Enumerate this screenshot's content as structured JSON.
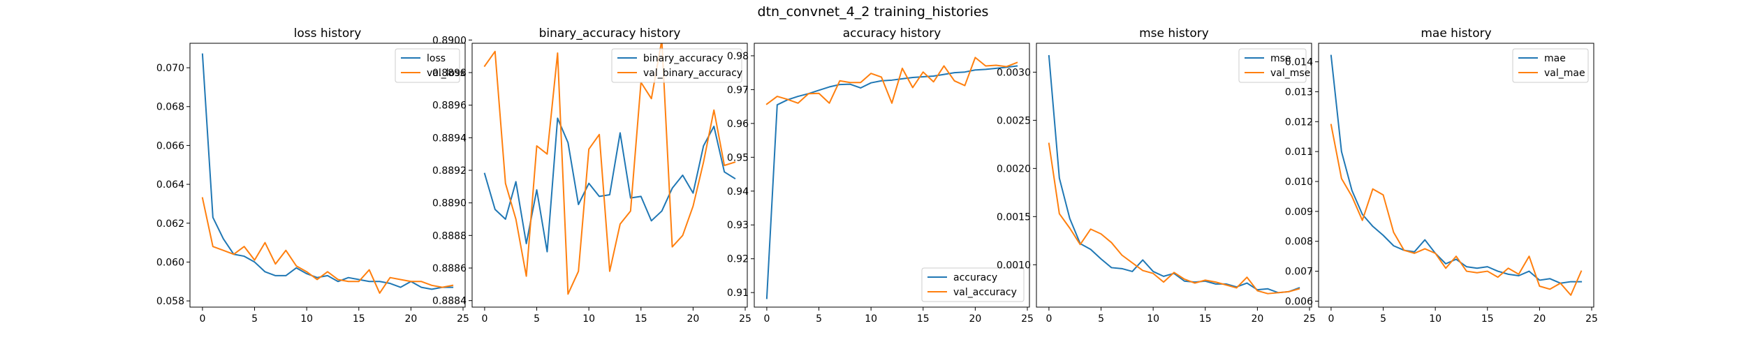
{
  "suptitle": "dtn_convnet_4_2 training_histories",
  "colors": {
    "train": "#1f77b4",
    "val": "#ff7f0e"
  },
  "chart_data": [
    {
      "type": "line",
      "title": "loss history",
      "legend_position": "upper-right",
      "xlim": [
        -1.2,
        25.2
      ],
      "ylim": [
        0.05768,
        0.07126
      ],
      "xticks": [
        0,
        5,
        10,
        15,
        20,
        25
      ],
      "yticks": [
        0.058,
        0.06,
        0.062,
        0.064,
        0.066,
        0.068,
        0.07
      ],
      "ytick_labels": [
        "0.058",
        "0.060",
        "0.062",
        "0.064",
        "0.066",
        "0.068",
        "0.070"
      ],
      "x": [
        0,
        1,
        2,
        3,
        4,
        5,
        6,
        7,
        8,
        9,
        10,
        11,
        12,
        13,
        14,
        15,
        16,
        17,
        18,
        19,
        20,
        21,
        22,
        23,
        24
      ],
      "series": [
        {
          "name": "loss",
          "color_key": "train",
          "values": [
            0.0707,
            0.0623,
            0.0612,
            0.0604,
            0.0603,
            0.06,
            0.0595,
            0.0593,
            0.0593,
            0.0597,
            0.0594,
            0.0592,
            0.0593,
            0.059,
            0.0592,
            0.0591,
            0.059,
            0.059,
            0.0589,
            0.0587,
            0.059,
            0.0587,
            0.0586,
            0.0587,
            0.0587
          ]
        },
        {
          "name": "val_loss",
          "color_key": "val",
          "values": [
            0.0633,
            0.0608,
            0.0606,
            0.0604,
            0.0608,
            0.0601,
            0.061,
            0.0599,
            0.0606,
            0.0598,
            0.0595,
            0.0591,
            0.0595,
            0.0591,
            0.059,
            0.059,
            0.0596,
            0.0584,
            0.0592,
            0.0591,
            0.059,
            0.059,
            0.0588,
            0.0587,
            0.0588
          ]
        }
      ]
    },
    {
      "type": "line",
      "title": "binary_accuracy history",
      "legend_position": "upper-right",
      "xlim": [
        -1.2,
        25.2
      ],
      "ylim": [
        0.88836,
        0.88998
      ],
      "xticks": [
        0,
        5,
        10,
        15,
        20,
        25
      ],
      "yticks": [
        0.8884,
        0.8886,
        0.8888,
        0.889,
        0.8892,
        0.8894,
        0.8896,
        0.8898,
        0.89
      ],
      "ytick_labels": [
        "0.8884",
        "0.8886",
        "0.8888",
        "0.8890",
        "0.8892",
        "0.8894",
        "0.8896",
        "0.8898",
        "0.8900"
      ],
      "x": [
        0,
        1,
        2,
        3,
        4,
        5,
        6,
        7,
        8,
        9,
        10,
        11,
        12,
        13,
        14,
        15,
        16,
        17,
        18,
        19,
        20,
        21,
        22,
        23,
        24
      ],
      "series": [
        {
          "name": "binary_accuracy",
          "color_key": "train",
          "values": [
            0.88918,
            0.88896,
            0.8889,
            0.88913,
            0.88875,
            0.88908,
            0.8887,
            0.88952,
            0.88937,
            0.88899,
            0.88912,
            0.88904,
            0.88905,
            0.88943,
            0.88903,
            0.88904,
            0.88889,
            0.88895,
            0.88909,
            0.88917,
            0.88906,
            0.88935,
            0.88947,
            0.88919,
            0.88915
          ]
        },
        {
          "name": "val_binary_accuracy",
          "color_key": "val",
          "values": [
            0.88984,
            0.88993,
            0.88912,
            0.8889,
            0.88855,
            0.88935,
            0.8893,
            0.88992,
            0.88844,
            0.88858,
            0.88933,
            0.88942,
            0.88858,
            0.88887,
            0.88895,
            0.88974,
            0.88964,
            0.89,
            0.88873,
            0.8888,
            0.88898,
            0.88925,
            0.88957,
            0.88923,
            0.88925
          ]
        }
      ]
    },
    {
      "type": "line",
      "title": "accuracy history",
      "legend_position": "lower-right",
      "xlim": [
        -1.2,
        25.2
      ],
      "ylim": [
        0.9057,
        0.9837
      ],
      "xticks": [
        0,
        5,
        10,
        15,
        20,
        25
      ],
      "yticks": [
        0.91,
        0.92,
        0.93,
        0.94,
        0.95,
        0.96,
        0.97,
        0.98
      ],
      "ytick_labels": [
        "0.91",
        "0.92",
        "0.93",
        "0.94",
        "0.95",
        "0.96",
        "0.97",
        "0.98"
      ],
      "x": [
        0,
        1,
        2,
        3,
        4,
        5,
        6,
        7,
        8,
        9,
        10,
        11,
        12,
        13,
        14,
        15,
        16,
        17,
        18,
        19,
        20,
        21,
        22,
        23,
        24
      ],
      "series": [
        {
          "name": "accuracy",
          "color_key": "train",
          "values": [
            0.9083,
            0.9655,
            0.967,
            0.968,
            0.9688,
            0.9698,
            0.9708,
            0.9715,
            0.9716,
            0.9705,
            0.972,
            0.9726,
            0.9728,
            0.9732,
            0.9736,
            0.9738,
            0.974,
            0.9745,
            0.975,
            0.9752,
            0.9758,
            0.976,
            0.9763,
            0.9766,
            0.977
          ]
        },
        {
          "name": "val_accuracy",
          "color_key": "val",
          "values": [
            0.9657,
            0.968,
            0.9671,
            0.966,
            0.9688,
            0.9689,
            0.966,
            0.9726,
            0.9721,
            0.9721,
            0.9748,
            0.9737,
            0.966,
            0.9763,
            0.9706,
            0.9752,
            0.9723,
            0.977,
            0.9726,
            0.9712,
            0.9795,
            0.977,
            0.9772,
            0.9768,
            0.978
          ]
        }
      ]
    },
    {
      "type": "line",
      "title": "mse history",
      "legend_position": "upper-right",
      "xlim": [
        -1.2,
        25.2
      ],
      "ylim": [
        0.00056,
        0.0033
      ],
      "xticks": [
        0,
        5,
        10,
        15,
        20,
        25
      ],
      "yticks": [
        0.001,
        0.0015,
        0.002,
        0.0025,
        0.003
      ],
      "ytick_labels": [
        "0.0010",
        "0.0015",
        "0.0020",
        "0.0025",
        "0.0030"
      ],
      "x": [
        0,
        1,
        2,
        3,
        4,
        5,
        6,
        7,
        8,
        9,
        10,
        11,
        12,
        13,
        14,
        15,
        16,
        17,
        18,
        19,
        20,
        21,
        22,
        23,
        24
      ],
      "series": [
        {
          "name": "mse",
          "color_key": "train",
          "values": [
            0.00317,
            0.0019,
            0.00148,
            0.00122,
            0.00116,
            0.00106,
            0.00097,
            0.00096,
            0.00093,
            0.00105,
            0.00093,
            0.00088,
            0.00091,
            0.00083,
            0.00082,
            0.00083,
            0.0008,
            0.0008,
            0.00077,
            0.00081,
            0.00074,
            0.00075,
            0.00071,
            0.00072,
            0.00076
          ]
        },
        {
          "name": "val_mse",
          "color_key": "val",
          "values": [
            0.00226,
            0.00153,
            0.00138,
            0.00121,
            0.00137,
            0.00132,
            0.00123,
            0.0011,
            0.00102,
            0.00094,
            0.00091,
            0.00082,
            0.00092,
            0.00085,
            0.00081,
            0.00084,
            0.00082,
            0.00079,
            0.00076,
            0.00087,
            0.00073,
            0.0007,
            0.00071,
            0.00072,
            0.00075
          ]
        }
      ]
    },
    {
      "type": "line",
      "title": "mae history",
      "legend_position": "upper-right",
      "xlim": [
        -1.2,
        25.2
      ],
      "ylim": [
        0.0058,
        0.01462
      ],
      "xticks": [
        0,
        5,
        10,
        15,
        20,
        25
      ],
      "yticks": [
        0.006,
        0.007,
        0.008,
        0.009,
        0.01,
        0.011,
        0.012,
        0.013,
        0.014
      ],
      "ytick_labels": [
        "0.006",
        "0.007",
        "0.008",
        "0.009",
        "0.010",
        "0.011",
        "0.012",
        "0.013",
        "0.014"
      ],
      "x": [
        0,
        1,
        2,
        3,
        4,
        5,
        6,
        7,
        8,
        9,
        10,
        11,
        12,
        13,
        14,
        15,
        16,
        17,
        18,
        19,
        20,
        21,
        22,
        23,
        24
      ],
      "series": [
        {
          "name": "mae",
          "color_key": "train",
          "values": [
            0.01421,
            0.011,
            0.0097,
            0.0089,
            0.0085,
            0.0082,
            0.00785,
            0.0077,
            0.00765,
            0.00805,
            0.0076,
            0.00725,
            0.0074,
            0.00715,
            0.0071,
            0.00715,
            0.007,
            0.0069,
            0.00685,
            0.007,
            0.0067,
            0.00675,
            0.0066,
            0.00665,
            0.00665
          ]
        },
        {
          "name": "val_mae",
          "color_key": "val",
          "values": [
            0.0119,
            0.0101,
            0.0095,
            0.0087,
            0.00975,
            0.00955,
            0.0083,
            0.0077,
            0.0076,
            0.00775,
            0.0076,
            0.0071,
            0.0075,
            0.007,
            0.00695,
            0.007,
            0.0068,
            0.0071,
            0.0069,
            0.0075,
            0.0065,
            0.0064,
            0.0066,
            0.0062,
            0.007
          ]
        }
      ]
    }
  ]
}
